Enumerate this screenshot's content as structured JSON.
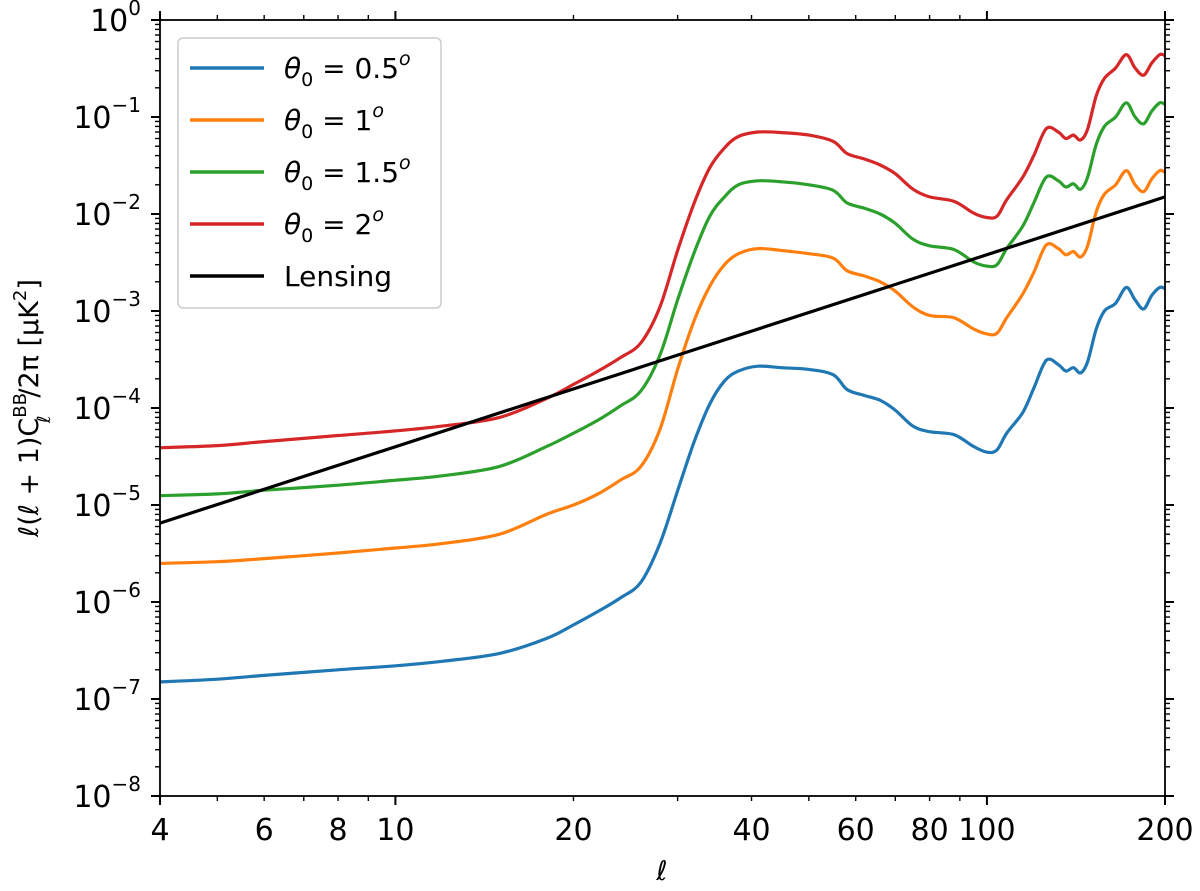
{
  "chart_data": {
    "type": "line",
    "x_scale": "log",
    "y_scale": "log",
    "xlabel": "ℓ",
    "ylabel_parts": {
      "main": "ℓ(ℓ + 1)C",
      "sup": "BB",
      "sub": "ℓ",
      "tail": "/2π [μK",
      "tail_sup": "2",
      "close": "]"
    },
    "xlim": [
      4,
      200
    ],
    "ylim_exp": [
      -8,
      0
    ],
    "x_ticks": [
      {
        "value": 4,
        "label": "4"
      },
      {
        "value": 6,
        "label": "6"
      },
      {
        "value": 8,
        "label": "8"
      },
      {
        "value": 10,
        "label": "10"
      },
      {
        "value": 20,
        "label": "20"
      },
      {
        "value": 40,
        "label": "40"
      },
      {
        "value": 60,
        "label": "60"
      },
      {
        "value": 80,
        "label": "80"
      },
      {
        "value": 100,
        "label": "100"
      },
      {
        "value": 200,
        "label": "200"
      }
    ],
    "y_ticks": [
      {
        "exp": 0,
        "base": "10",
        "sup": "0"
      },
      {
        "exp": -1,
        "base": "10",
        "sup": "−1"
      },
      {
        "exp": -2,
        "base": "10",
        "sup": "−2"
      },
      {
        "exp": -3,
        "base": "10",
        "sup": "−3"
      },
      {
        "exp": -4,
        "base": "10",
        "sup": "−4"
      },
      {
        "exp": -5,
        "base": "10",
        "sup": "−5"
      },
      {
        "exp": -6,
        "base": "10",
        "sup": "−6"
      },
      {
        "exp": -7,
        "base": "10",
        "sup": "−7"
      },
      {
        "exp": -8,
        "base": "10",
        "sup": "−8"
      }
    ],
    "series": [
      {
        "name": "theta-0.5",
        "label": {
          "sym": "θ",
          "sub": "0",
          "eq": " = 0.5",
          "sup": "o"
        },
        "color": "#1f77b4",
        "points": [
          [
            4,
            1.5e-07
          ],
          [
            5,
            1.6e-07
          ],
          [
            6,
            1.75e-07
          ],
          [
            8,
            2e-07
          ],
          [
            10,
            2.2e-07
          ],
          [
            12,
            2.45e-07
          ],
          [
            15,
            2.95e-07
          ],
          [
            18,
            4.2e-07
          ],
          [
            20,
            5.8e-07
          ],
          [
            22,
            8e-07
          ],
          [
            24,
            1.1e-06
          ],
          [
            26,
            1.6e-06
          ],
          [
            28,
            4e-06
          ],
          [
            30,
            1.4e-05
          ],
          [
            32,
            4.5e-05
          ],
          [
            34,
            0.00011
          ],
          [
            36,
            0.00019
          ],
          [
            38,
            0.00024
          ],
          [
            41,
            0.00027
          ],
          [
            45,
            0.00026
          ],
          [
            50,
            0.00025
          ],
          [
            55,
            0.00022
          ],
          [
            58,
            0.000155
          ],
          [
            62,
            0.000135
          ],
          [
            66,
            0.00012
          ],
          [
            70,
            9.5e-05
          ],
          [
            75,
            6.5e-05
          ],
          [
            80,
            5.7e-05
          ],
          [
            88,
            5.3e-05
          ],
          [
            95,
            4e-05
          ],
          [
            100,
            3.5e-05
          ],
          [
            104,
            3.7e-05
          ],
          [
            108,
            5.5e-05
          ],
          [
            115,
            9e-05
          ],
          [
            120,
            0.00016
          ],
          [
            126,
            0.00031
          ],
          [
            132,
            0.00028
          ],
          [
            136,
            0.00024
          ],
          [
            140,
            0.00026
          ],
          [
            144,
            0.00023
          ],
          [
            148,
            0.0003
          ],
          [
            153,
            0.00065
          ],
          [
            158,
            0.001
          ],
          [
            165,
            0.0012
          ],
          [
            172,
            0.00175
          ],
          [
            178,
            0.0013
          ],
          [
            184,
            0.00105
          ],
          [
            190,
            0.00145
          ],
          [
            196,
            0.00175
          ],
          [
            200,
            0.0017
          ]
        ]
      },
      {
        "name": "theta-1",
        "label": {
          "sym": "θ",
          "sub": "0",
          "eq": " = 1",
          "sup": "o"
        },
        "color": "#ff7f0e",
        "points": [
          [
            4,
            2.5e-06
          ],
          [
            5,
            2.6e-06
          ],
          [
            6,
            2.8e-06
          ],
          [
            8,
            3.2e-06
          ],
          [
            10,
            3.6e-06
          ],
          [
            12,
            4e-06
          ],
          [
            15,
            5e-06
          ],
          [
            18,
            8e-06
          ],
          [
            20,
            1e-05
          ],
          [
            22,
            1.3e-05
          ],
          [
            24,
            1.8e-05
          ],
          [
            26,
            2.5e-05
          ],
          [
            28,
            6e-05
          ],
          [
            30,
            0.00025
          ],
          [
            32,
            0.0008
          ],
          [
            34,
            0.0018
          ],
          [
            36,
            0.003
          ],
          [
            38,
            0.0039
          ],
          [
            41,
            0.0044
          ],
          [
            45,
            0.0042
          ],
          [
            50,
            0.0039
          ],
          [
            55,
            0.0035
          ],
          [
            58,
            0.0026
          ],
          [
            62,
            0.0023
          ],
          [
            66,
            0.002
          ],
          [
            70,
            0.0016
          ],
          [
            75,
            0.0011
          ],
          [
            80,
            0.0009
          ],
          [
            88,
            0.00085
          ],
          [
            95,
            0.00065
          ],
          [
            100,
            0.00058
          ],
          [
            104,
            0.00059
          ],
          [
            108,
            0.00085
          ],
          [
            115,
            0.0015
          ],
          [
            120,
            0.0025
          ],
          [
            126,
            0.0048
          ],
          [
            132,
            0.0044
          ],
          [
            136,
            0.0038
          ],
          [
            140,
            0.0041
          ],
          [
            144,
            0.0036
          ],
          [
            148,
            0.0047
          ],
          [
            153,
            0.0105
          ],
          [
            158,
            0.016
          ],
          [
            165,
            0.02
          ],
          [
            172,
            0.028
          ],
          [
            178,
            0.02
          ],
          [
            184,
            0.017
          ],
          [
            190,
            0.023
          ],
          [
            196,
            0.028
          ],
          [
            200,
            0.027
          ]
        ]
      },
      {
        "name": "theta-1.5",
        "label": {
          "sym": "θ",
          "sub": "0",
          "eq": " = 1.5",
          "sup": "o"
        },
        "color": "#2ca02c",
        "points": [
          [
            4,
            1.25e-05
          ],
          [
            5,
            1.3e-05
          ],
          [
            6,
            1.42e-05
          ],
          [
            8,
            1.6e-05
          ],
          [
            10,
            1.8e-05
          ],
          [
            12,
            2e-05
          ],
          [
            15,
            2.5e-05
          ],
          [
            18,
            4e-05
          ],
          [
            20,
            5.5e-05
          ],
          [
            22,
            7.5e-05
          ],
          [
            24,
            0.000105
          ],
          [
            26,
            0.00015
          ],
          [
            28,
            0.00035
          ],
          [
            30,
            0.0013
          ],
          [
            32,
            0.004
          ],
          [
            34,
            0.0095
          ],
          [
            36,
            0.015
          ],
          [
            38,
            0.02
          ],
          [
            41,
            0.022
          ],
          [
            45,
            0.0215
          ],
          [
            50,
            0.02
          ],
          [
            55,
            0.0175
          ],
          [
            58,
            0.013
          ],
          [
            62,
            0.0115
          ],
          [
            66,
            0.01
          ],
          [
            70,
            0.008
          ],
          [
            75,
            0.0055
          ],
          [
            80,
            0.0047
          ],
          [
            88,
            0.0043
          ],
          [
            95,
            0.0032
          ],
          [
            100,
            0.0029
          ],
          [
            104,
            0.003
          ],
          [
            108,
            0.0044
          ],
          [
            115,
            0.0075
          ],
          [
            120,
            0.013
          ],
          [
            126,
            0.024
          ],
          [
            132,
            0.022
          ],
          [
            136,
            0.019
          ],
          [
            140,
            0.0205
          ],
          [
            144,
            0.018
          ],
          [
            148,
            0.024
          ],
          [
            153,
            0.052
          ],
          [
            158,
            0.08
          ],
          [
            165,
            0.1
          ],
          [
            172,
            0.14
          ],
          [
            178,
            0.1
          ],
          [
            184,
            0.085
          ],
          [
            190,
            0.115
          ],
          [
            196,
            0.14
          ],
          [
            200,
            0.135
          ]
        ]
      },
      {
        "name": "theta-2",
        "label": {
          "sym": "θ",
          "sub": "0",
          "eq": " = 2",
          "sup": "o"
        },
        "color": "#d62728",
        "points": [
          [
            4,
            3.9e-05
          ],
          [
            5,
            4.1e-05
          ],
          [
            6,
            4.5e-05
          ],
          [
            8,
            5.2e-05
          ],
          [
            10,
            5.8e-05
          ],
          [
            12,
            6.5e-05
          ],
          [
            15,
            8e-05
          ],
          [
            18,
            0.000125
          ],
          [
            20,
            0.000175
          ],
          [
            22,
            0.00024
          ],
          [
            24,
            0.00033
          ],
          [
            26,
            0.00047
          ],
          [
            28,
            0.0011
          ],
          [
            30,
            0.0042
          ],
          [
            32,
            0.013
          ],
          [
            34,
            0.03
          ],
          [
            36,
            0.048
          ],
          [
            38,
            0.063
          ],
          [
            41,
            0.07
          ],
          [
            45,
            0.069
          ],
          [
            50,
            0.065
          ],
          [
            55,
            0.056
          ],
          [
            58,
            0.042
          ],
          [
            62,
            0.037
          ],
          [
            66,
            0.032
          ],
          [
            70,
            0.026
          ],
          [
            75,
            0.018
          ],
          [
            80,
            0.015
          ],
          [
            88,
            0.0135
          ],
          [
            95,
            0.0102
          ],
          [
            100,
            0.0092
          ],
          [
            104,
            0.0095
          ],
          [
            108,
            0.014
          ],
          [
            115,
            0.024
          ],
          [
            120,
            0.04
          ],
          [
            126,
            0.076
          ],
          [
            132,
            0.07
          ],
          [
            136,
            0.06
          ],
          [
            140,
            0.065
          ],
          [
            144,
            0.058
          ],
          [
            148,
            0.075
          ],
          [
            153,
            0.165
          ],
          [
            158,
            0.25
          ],
          [
            165,
            0.32
          ],
          [
            172,
            0.44
          ],
          [
            178,
            0.32
          ],
          [
            184,
            0.27
          ],
          [
            190,
            0.36
          ],
          [
            196,
            0.44
          ],
          [
            200,
            0.43
          ]
        ]
      },
      {
        "name": "lensing",
        "label": {
          "text": "Lensing"
        },
        "color": "#000000",
        "points": [
          [
            4,
            6.5e-06
          ],
          [
            200,
            0.015
          ]
        ]
      }
    ]
  }
}
